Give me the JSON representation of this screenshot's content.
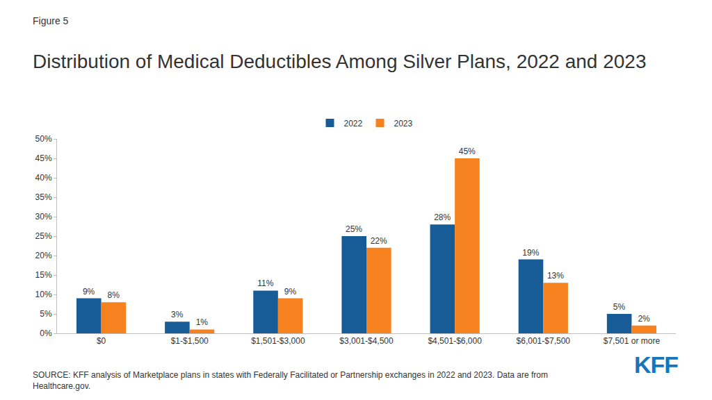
{
  "chart_data": {
    "type": "bar",
    "kicker": "Figure 5",
    "title": "Distribution of Medical Deductibles Among Silver Plans, 2022 and 2023",
    "source": "SOURCE: KFF analysis of Marketplace plans in states with Federally Facilitated or Partnership exchanges in 2022 and 2023. Data are from Healthcare.gov.",
    "logo": "KFF",
    "categories": [
      "$0",
      "$1-$1,500",
      "$1,501-$3,000",
      "$3,001-$4,500",
      "$4,501-$6,000",
      "$6,001-$7,500",
      "$7,501 or more"
    ],
    "series": [
      {
        "name": "2022",
        "color": "#175c97",
        "values": [
          9,
          3,
          11,
          25,
          28,
          19,
          5
        ],
        "value_labels": [
          "9%",
          "3%",
          "11%",
          "25%",
          "28%",
          "19%",
          "5%"
        ]
      },
      {
        "name": "2023",
        "color": "#f5821f",
        "values": [
          8,
          1,
          9,
          22,
          45,
          13,
          2
        ],
        "value_labels": [
          "8%",
          "1%",
          "9%",
          "22%",
          "45%",
          "13%",
          "2%"
        ]
      }
    ],
    "ylim": [
      0,
      50
    ],
    "yticks": [
      {
        "value": 0,
        "label": "0%"
      },
      {
        "value": 5,
        "label": "5%"
      },
      {
        "value": 10,
        "label": "10%"
      },
      {
        "value": 15,
        "label": "15%"
      },
      {
        "value": 20,
        "label": "20%"
      },
      {
        "value": 25,
        "label": "25%"
      },
      {
        "value": 30,
        "label": "30%"
      },
      {
        "value": 35,
        "label": "35%"
      },
      {
        "value": 40,
        "label": "40%"
      },
      {
        "value": 45,
        "label": "45%"
      },
      {
        "value": 50,
        "label": "50%"
      }
    ],
    "grid": false,
    "legend": "top",
    "data_labels": true
  }
}
